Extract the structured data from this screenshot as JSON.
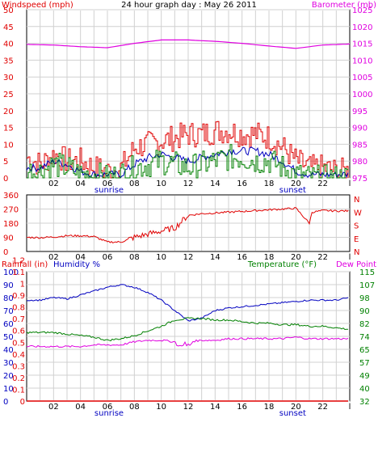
{
  "colors": {
    "red": "#e00000",
    "blue": "#0000c0",
    "green": "#008000",
    "magenta": "#e000e0",
    "grid": "#d0d0d0",
    "frame": "#000000"
  },
  "labels": {
    "windspeed": "Windspeed (mph)",
    "title": "24 hour graph day : May 26 2011",
    "barometer": "Barometer (mb)",
    "rainfall": "Rainfall (in)",
    "humidity": "Humidity %",
    "temperature": "Temperature (°F)",
    "dewpoint": "Dew Point",
    "sunrise": "sunrise",
    "sunset": "sunset"
  },
  "chart_data": [
    {
      "type": "line",
      "name": "wind",
      "x_ticks": [
        "02",
        "04",
        "06",
        "08",
        "10",
        "12",
        "14",
        "16",
        "18",
        "20",
        "22",
        "l"
      ],
      "sunrise_at": "06",
      "sunset_at": "20",
      "left_axis": {
        "label": "Windspeed (mph)",
        "ticks": [
          0,
          5,
          10,
          15,
          20,
          25,
          30,
          35,
          40,
          45,
          50
        ],
        "ylim": [
          0,
          50
        ]
      },
      "right_axis": {
        "label": "Barometer (mb)",
        "ticks": [
          975,
          980,
          985,
          990,
          995,
          1000,
          1005,
          1010,
          1015,
          1020,
          1025
        ],
        "ylim": [
          975,
          1025
        ]
      },
      "series": [
        {
          "color": "red",
          "axis": "left",
          "kind": "step",
          "points": [
            [
              0,
              6
            ],
            [
              1,
              4
            ],
            [
              2,
              7
            ],
            [
              3,
              5
            ],
            [
              4,
              5
            ],
            [
              5,
              3
            ],
            [
              6,
              2
            ],
            [
              7,
              3
            ],
            [
              8,
              9
            ],
            [
              9,
              10
            ],
            [
              10,
              11
            ],
            [
              11,
              12
            ],
            [
              12,
              13
            ],
            [
              13,
              13
            ],
            [
              14,
              14
            ],
            [
              15,
              14
            ],
            [
              16,
              13
            ],
            [
              17,
              13
            ],
            [
              18,
              12
            ],
            [
              19,
              9
            ],
            [
              20,
              5
            ],
            [
              21,
              3
            ],
            [
              22,
              3
            ],
            [
              23,
              2
            ],
            [
              24,
              2
            ]
          ]
        },
        {
          "color": "blue",
          "axis": "left",
          "points": [
            [
              0,
              3
            ],
            [
              1,
              3
            ],
            [
              2,
              5
            ],
            [
              3,
              4
            ],
            [
              4,
              2
            ],
            [
              5,
              1
            ],
            [
              6,
              1
            ],
            [
              7,
              1
            ],
            [
              8,
              4
            ],
            [
              9,
              6
            ],
            [
              10,
              7
            ],
            [
              11,
              6
            ],
            [
              12,
              5
            ],
            [
              13,
              6
            ],
            [
              14,
              7
            ],
            [
              15,
              8
            ],
            [
              16,
              8
            ],
            [
              17,
              8
            ],
            [
              18,
              7
            ],
            [
              19,
              5
            ],
            [
              20,
              2
            ],
            [
              21,
              1
            ],
            [
              22,
              1
            ],
            [
              23,
              1
            ],
            [
              24,
              1
            ]
          ]
        },
        {
          "color": "green",
          "axis": "left",
          "kind": "step",
          "points": [
            [
              0,
              2
            ],
            [
              1,
              2
            ],
            [
              2,
              4
            ],
            [
              3,
              3
            ],
            [
              4,
              1
            ],
            [
              5,
              1
            ],
            [
              6,
              0
            ],
            [
              7,
              1
            ],
            [
              8,
              3
            ],
            [
              9,
              4
            ],
            [
              10,
              5
            ],
            [
              11,
              4
            ],
            [
              12,
              3
            ],
            [
              13,
              4
            ],
            [
              14,
              5
            ],
            [
              15,
              6
            ],
            [
              16,
              6
            ],
            [
              17,
              5
            ],
            [
              18,
              5
            ],
            [
              19,
              3
            ],
            [
              20,
              1
            ],
            [
              21,
              0
            ],
            [
              22,
              0
            ],
            [
              23,
              0
            ],
            [
              24,
              0
            ]
          ]
        },
        {
          "color": "magenta",
          "axis": "right",
          "points": [
            [
              0,
              1014.7
            ],
            [
              2,
              1014.5
            ],
            [
              4,
              1014
            ],
            [
              6,
              1013.7
            ],
            [
              8,
              1015
            ],
            [
              10,
              1016
            ],
            [
              12,
              1016
            ],
            [
              14,
              1015.6
            ],
            [
              16,
              1015
            ],
            [
              18,
              1014.2
            ],
            [
              20,
              1013.5
            ],
            [
              22,
              1014.5
            ],
            [
              24,
              1014.8
            ]
          ]
        }
      ]
    },
    {
      "type": "line",
      "name": "direction",
      "x_ticks": [
        "02",
        "04",
        "06",
        "08",
        "10",
        "12",
        "14",
        "16",
        "18",
        "20",
        "22",
        "l"
      ],
      "left_axis": {
        "ticks": [
          0,
          90,
          180,
          270,
          360
        ],
        "ylim": [
          0,
          360
        ]
      },
      "right_axis": {
        "ticks": [
          "N",
          "W",
          "S",
          "E",
          "N"
        ]
      },
      "series": [
        {
          "color": "red",
          "axis": "left",
          "points": [
            [
              0,
              90
            ],
            [
              1,
              88
            ],
            [
              2,
              92
            ],
            [
              3,
              100
            ],
            [
              4,
              100
            ],
            [
              5,
              95
            ],
            [
              6,
              60
            ],
            [
              7,
              60
            ],
            [
              8,
              90
            ],
            [
              9,
              110
            ],
            [
              10,
              130
            ],
            [
              11,
              150
            ],
            [
              12,
              230
            ],
            [
              13,
              240
            ],
            [
              14,
              245
            ],
            [
              15,
              250
            ],
            [
              16,
              255
            ],
            [
              17,
              260
            ],
            [
              18,
              265
            ],
            [
              19,
              270
            ],
            [
              20,
              275
            ],
            [
              21,
              180
            ],
            [
              21.2,
              250
            ],
            [
              22,
              260
            ],
            [
              23,
              258
            ],
            [
              24,
              258
            ]
          ]
        }
      ]
    },
    {
      "type": "line",
      "name": "temperature",
      "x_ticks": [
        "02",
        "04",
        "06",
        "08",
        "10",
        "12",
        "14",
        "16",
        "18",
        "20",
        "22",
        "l"
      ],
      "sunrise_at": "06",
      "sunset_at": "20",
      "left_axis": {
        "label": "Humidity %",
        "ticks": [
          0,
          10,
          20,
          30,
          40,
          50,
          60,
          70,
          80,
          90,
          100
        ],
        "ylim": [
          0,
          100
        ]
      },
      "rain_axis": {
        "label": "Rainfall (in)",
        "ticks": [
          0,
          0.1,
          0.2,
          0.3,
          0.4,
          0.5,
          0.6,
          0.7,
          0.8,
          0.9,
          1,
          1.1,
          1.2
        ]
      },
      "right_axis": {
        "label": "Temperature (°F)",
        "ticks": [
          32,
          40,
          49,
          57,
          65,
          74,
          82,
          90,
          98,
          107,
          115
        ],
        "ylim": [
          32,
          115
        ]
      },
      "series": [
        {
          "color": "blue",
          "axis": "left",
          "points": [
            [
              0,
              78
            ],
            [
              1,
              78
            ],
            [
              2,
              80
            ],
            [
              3,
              79
            ],
            [
              4,
              82
            ],
            [
              5,
              85
            ],
            [
              6,
              88
            ],
            [
              7,
              90
            ],
            [
              8,
              88
            ],
            [
              9,
              84
            ],
            [
              10,
              78
            ],
            [
              11,
              70
            ],
            [
              12,
              62
            ],
            [
              13,
              64
            ],
            [
              14,
              70
            ],
            [
              15,
              72
            ],
            [
              16,
              73
            ],
            [
              17,
              74
            ],
            [
              18,
              75
            ],
            [
              19,
              76
            ],
            [
              20,
              77
            ],
            [
              21,
              78
            ],
            [
              22,
              78
            ],
            [
              23,
              78
            ],
            [
              24,
              80
            ]
          ]
        },
        {
          "color": "green",
          "axis": "right",
          "points": [
            [
              0,
              76
            ],
            [
              1,
              76
            ],
            [
              2,
              76
            ],
            [
              3,
              75
            ],
            [
              4,
              74
            ],
            [
              5,
              73
            ],
            [
              6,
              71
            ],
            [
              7,
              72
            ],
            [
              8,
              74
            ],
            [
              9,
              77
            ],
            [
              10,
              80
            ],
            [
              11,
              84
            ],
            [
              12,
              85
            ],
            [
              13,
              85
            ],
            [
              14,
              84
            ],
            [
              15,
              84
            ],
            [
              16,
              83
            ],
            [
              17,
              82
            ],
            [
              18,
              82
            ],
            [
              19,
              81
            ],
            [
              20,
              81
            ],
            [
              21,
              80
            ],
            [
              22,
              80
            ],
            [
              23,
              79
            ],
            [
              24,
              78
            ]
          ]
        },
        {
          "color": "magenta",
          "axis": "right",
          "points": [
            [
              0,
              67
            ],
            [
              1,
              67
            ],
            [
              2,
              67
            ],
            [
              3,
              67
            ],
            [
              4,
              67
            ],
            [
              5,
              68
            ],
            [
              6,
              68
            ],
            [
              7,
              68
            ],
            [
              8,
              70
            ],
            [
              9,
              71
            ],
            [
              10,
              71
            ],
            [
              11,
              70
            ],
            [
              12,
              70
            ],
            [
              13,
              71
            ],
            [
              14,
              71
            ],
            [
              15,
              72
            ],
            [
              16,
              72
            ],
            [
              17,
              72
            ],
            [
              18,
              72
            ],
            [
              19,
              72
            ],
            [
              20,
              73
            ],
            [
              21,
              72
            ],
            [
              22,
              72
            ],
            [
              23,
              72
            ],
            [
              24,
              72
            ]
          ]
        },
        {
          "color": "red",
          "axis": "left",
          "points": [
            [
              0,
              0
            ],
            [
              24,
              0
            ]
          ]
        }
      ]
    }
  ]
}
